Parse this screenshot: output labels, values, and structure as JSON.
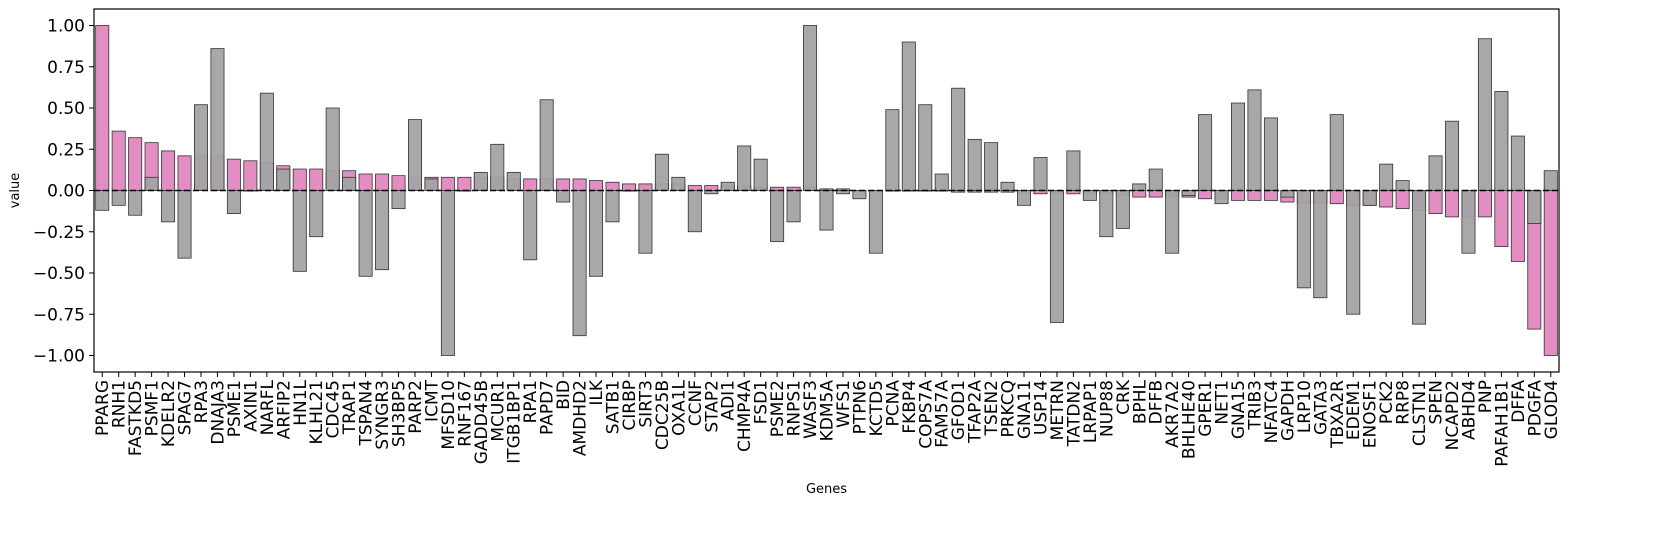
{
  "chart_data": {
    "type": "bar",
    "xlabel": "Genes",
    "ylabel": "value",
    "ylim": [
      -1.1,
      1.1
    ],
    "yticks": [
      -1.0,
      -0.75,
      -0.5,
      -0.25,
      0.0,
      0.25,
      0.5,
      0.75,
      1.0
    ],
    "ytick_labels": [
      "−1.00",
      "−0.75",
      "−0.50",
      "−0.25",
      "0.00",
      "0.25",
      "0.50",
      "0.75",
      "1.00"
    ],
    "reference_line": 0,
    "grid": false,
    "legend": "none",
    "colors": {
      "pink": "#e38ec3",
      "gray": "#a3a3a3",
      "edge": "#333333"
    },
    "categories": [
      "PPARG",
      "RNH1",
      "FASTKD5",
      "PSMF1",
      "KDELR2",
      "SPAG7",
      "RPA3",
      "DNAJA3",
      "PSME1",
      "AXIN1",
      "NARFL",
      "ARFIP2",
      "HN1L",
      "KLHL21",
      "CDC45",
      "TRAP1",
      "TSPAN4",
      "SYNGR3",
      "SH3BP5",
      "PARP2",
      "ICMT",
      "MFSD10",
      "RNF167",
      "GADD45B",
      "MCUR1",
      "ITGB1BP1",
      "RPA1",
      "PAPD7",
      "BID",
      "AMDHD2",
      "ILK",
      "SATB1",
      "CIRBP",
      "SIRT3",
      "CDC25B",
      "OXA1L",
      "CCNF",
      "STAP2",
      "ADI1",
      "CHMP4A",
      "FSD1",
      "PSME2",
      "RNPS1",
      "WASF3",
      "KDM5A",
      "WFS1",
      "PTPN6",
      "KCTD5",
      "PCNA",
      "FKBP4",
      "COPS7A",
      "FAM57A",
      "GFOD1",
      "TFAP2A",
      "TSEN2",
      "PRKCQ",
      "GNA11",
      "USP14",
      "METRN",
      "TATDN2",
      "LRPAP1",
      "NUP88",
      "CRK",
      "BPHL",
      "DFFB",
      "AKR7A2",
      "BHLHE40",
      "GPER1",
      "NET1",
      "GNA15",
      "TRIB3",
      "NFATC4",
      "GAPDH",
      "LRP10",
      "GATA3",
      "TBXA2R",
      "EDEM1",
      "ENOSF1",
      "PCK2",
      "RRP8",
      "CLSTN1",
      "SPEN",
      "NCAPD2",
      "ABHD4",
      "PNP",
      "PAFAH1B1",
      "DFFA",
      "PDGFA",
      "GLOD4"
    ],
    "series": [
      {
        "values": [
          1.0,
          0.36,
          0.32,
          0.29,
          0.24,
          0.21,
          0.21,
          0.21,
          0.19,
          0.18,
          0.17,
          0.15,
          0.13,
          0.13,
          0.12,
          0.12,
          0.1,
          0.1,
          0.09,
          0.08,
          0.08,
          0.08,
          0.08,
          0.08,
          0.08,
          0.07,
          0.07,
          0.07,
          0.07,
          0.07,
          0.06,
          0.05,
          0.04,
          0.04,
          0.04,
          0.04,
          0.03,
          0.03,
          0.03,
          0.03,
          0.02,
          0.02,
          0.02,
          0.02,
          0.01,
          0.01,
          0.0,
          0.0,
          0.0,
          0.0,
          0.0,
          0.0,
          -0.01,
          -0.01,
          -0.01,
          -0.01,
          -0.02,
          -0.02,
          -0.02,
          -0.02,
          -0.02,
          -0.02,
          -0.03,
          -0.04,
          -0.04,
          -0.04,
          -0.04,
          -0.05,
          -0.05,
          -0.06,
          -0.06,
          -0.06,
          -0.07,
          -0.08,
          -0.08,
          -0.08,
          -0.09,
          -0.09,
          -0.1,
          -0.11,
          -0.12,
          -0.14,
          -0.16,
          -0.16,
          -0.16,
          -0.34,
          -0.43,
          -0.84,
          -1.0
        ]
      },
      {
        "values": [
          -0.12,
          -0.09,
          -0.15,
          0.08,
          -0.19,
          -0.41,
          0.52,
          0.86,
          -0.14,
          0.0,
          0.59,
          0.13,
          -0.49,
          -0.28,
          0.5,
          0.08,
          -0.52,
          -0.48,
          -0.11,
          0.43,
          0.07,
          -1.0,
          0.0,
          0.11,
          0.28,
          0.11,
          -0.42,
          0.55,
          -0.07,
          -0.88,
          -0.52,
          -0.19,
          0.0,
          -0.38,
          0.22,
          0.08,
          -0.25,
          -0.02,
          0.05,
          0.27,
          0.19,
          -0.31,
          -0.19,
          1.0,
          -0.24,
          -0.02,
          -0.05,
          -0.38,
          0.49,
          0.9,
          0.52,
          0.1,
          0.62,
          0.31,
          0.29,
          0.05,
          -0.09,
          0.2,
          -0.8,
          0.24,
          -0.06,
          -0.28,
          -0.23,
          0.04,
          0.13,
          -0.38,
          -0.03,
          0.46,
          -0.08,
          0.53,
          0.61,
          0.44,
          -0.04,
          -0.59,
          -0.65,
          0.46,
          -0.75,
          -0.09,
          0.16,
          0.06,
          -0.81,
          0.21,
          0.42,
          -0.38,
          0.92,
          0.6,
          0.33,
          -0.2,
          0.12
        ]
      }
    ]
  }
}
